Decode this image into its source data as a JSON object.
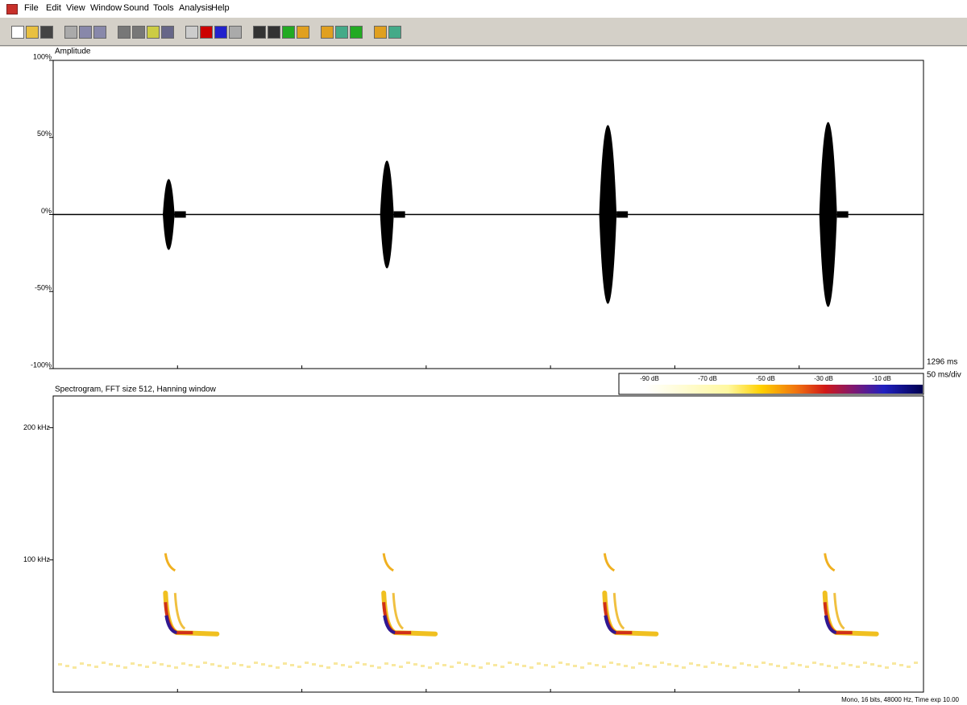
{
  "menu": [
    "File",
    "Edit",
    "View",
    "Window",
    "Sound",
    "Tools",
    "Analysis",
    "Help"
  ],
  "waveform": {
    "title": "Amplitude",
    "yticks": [
      {
        "value": 100,
        "label": "100%"
      },
      {
        "value": 50,
        "label": "50%"
      },
      {
        "value": 0,
        "label": "0%"
      },
      {
        "value": -50,
        "label": "-50%"
      },
      {
        "value": -100,
        "label": "-100%"
      }
    ],
    "time_lim": [
      0,
      1296
    ],
    "pulses": [
      {
        "time_ms": 172,
        "amplitude": 23
      },
      {
        "time_ms": 497,
        "amplitude": 35
      },
      {
        "time_ms": 826,
        "amplitude": 58
      },
      {
        "time_ms": 1154,
        "amplitude": 60
      }
    ]
  },
  "time_info": {
    "length": "1296 ms",
    "scale": "50 ms/div"
  },
  "spectrogram": {
    "title": "Spectrogram, FFT size 512, Hanning window",
    "ylim": [
      0,
      224
    ],
    "yticks": [
      {
        "value": 200,
        "label": "200 kHz"
      },
      {
        "value": 100,
        "label": "100 kHz"
      }
    ],
    "colorbar": [
      "-90 dB",
      "-70 dB",
      "-50 dB",
      "-30 dB",
      "-10 dB"
    ]
  },
  "status": "Mono, 16 bits, 48000 Hz, Time exp 10.00"
}
